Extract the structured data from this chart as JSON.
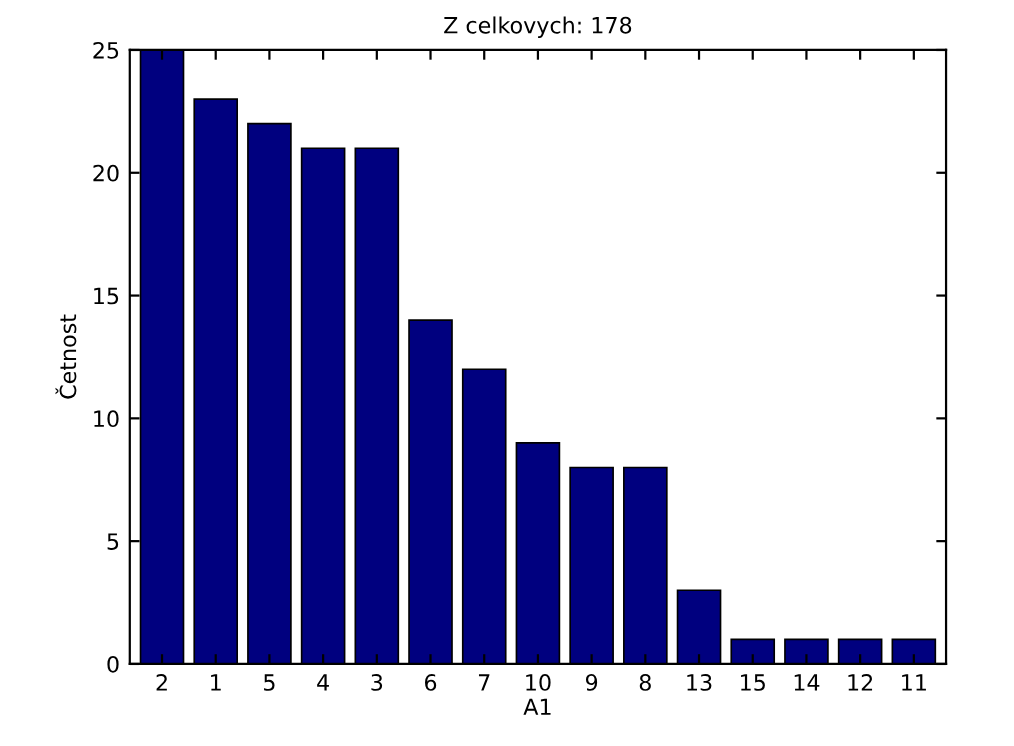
{
  "chart_data": {
    "type": "bar",
    "title": "Z celkovych: 178",
    "xlabel": "A1",
    "ylabel": "Četnost",
    "categories": [
      "2",
      "1",
      "5",
      "4",
      "3",
      "6",
      "7",
      "10",
      "9",
      "8",
      "13",
      "15",
      "14",
      "12",
      "11"
    ],
    "values": [
      25,
      23,
      22,
      21,
      21,
      14,
      12,
      9,
      8,
      8,
      3,
      1,
      1,
      1,
      1
    ],
    "color": "#00007f",
    "ylim": [
      0,
      25
    ],
    "yticks": [
      0,
      5,
      10,
      15,
      20,
      25
    ],
    "grid": false
  }
}
